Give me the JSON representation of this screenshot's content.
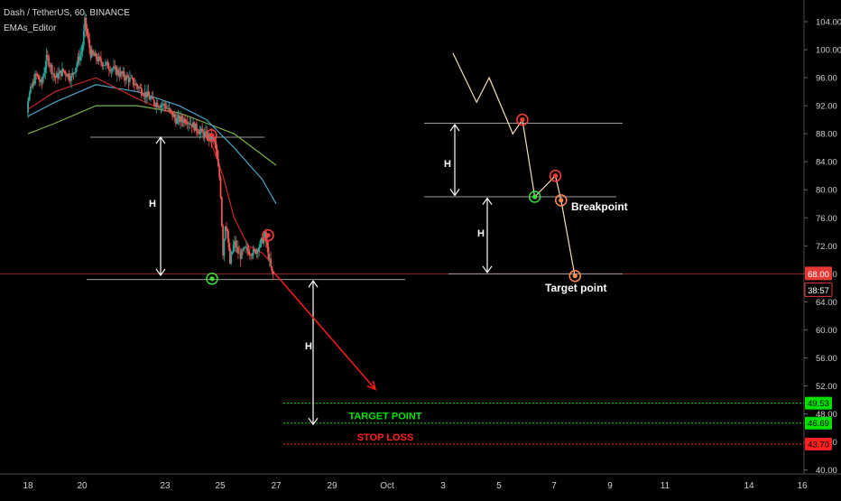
{
  "header": {
    "title": "Dash / TetherUS, 60, BINANCE",
    "indicator": "EMAs_Editor"
  },
  "colors": {
    "background": "#000000",
    "up": "#26a69a",
    "down": "#ef5350",
    "ema_fast": "#c62828",
    "ema_mid": "#4aa3c7",
    "ema_slow": "#7cb342",
    "pattern_line": "#f5deb3",
    "target_line": "#00e000",
    "stop_line": "#ff2020",
    "forecast_arrow": "#ff1a1a",
    "arrows": "#ffffff"
  },
  "chart_data": {
    "type": "candlestick",
    "symbol": "Dash / TetherUS",
    "interval": "60",
    "exchange": "BINANCE",
    "ylim": [
      39,
      106
    ],
    "y_ticks": [
      "104.00",
      "100.00",
      "96.00",
      "92.00",
      "88.00",
      "84.00",
      "80.00",
      "76.00",
      "72.00",
      "68.00",
      "64.00",
      "60.00",
      "56.00",
      "52.00",
      "48.00",
      "44.00",
      "40.00"
    ],
    "x_ticks": [
      "18",
      "20",
      "23",
      "25",
      "27",
      "29",
      "Oct",
      "3",
      "5",
      "7",
      "9",
      "11",
      "14",
      "16"
    ],
    "price_path": [
      [
        17.6,
        92.5
      ],
      [
        17.8,
        91.0
      ],
      [
        18.0,
        93.0
      ],
      [
        18.3,
        96.5
      ],
      [
        18.5,
        95.0
      ],
      [
        18.7,
        99.0
      ],
      [
        19.0,
        96.0
      ],
      [
        19.3,
        97.0
      ],
      [
        19.6,
        96.0
      ],
      [
        19.8,
        98.0
      ],
      [
        20.0,
        100.0
      ],
      [
        20.1,
        104.0
      ],
      [
        20.3,
        99.5
      ],
      [
        20.6,
        98.5
      ],
      [
        21.0,
        97.5
      ],
      [
        21.4,
        96.5
      ],
      [
        21.8,
        95.5
      ],
      [
        22.2,
        94.0
      ],
      [
        22.6,
        92.5
      ],
      [
        23.0,
        92.0
      ],
      [
        23.4,
        90.0
      ],
      [
        23.8,
        90.0
      ],
      [
        24.2,
        88.5
      ],
      [
        24.6,
        87.5
      ],
      [
        24.8,
        87.0
      ],
      [
        25.0,
        81.0
      ],
      [
        25.1,
        71.0
      ],
      [
        25.2,
        76.0
      ],
      [
        25.35,
        69.5
      ],
      [
        25.5,
        72.5
      ],
      [
        25.7,
        70.5
      ],
      [
        25.9,
        71.5
      ],
      [
        26.2,
        71.0
      ],
      [
        26.4,
        72.0
      ],
      [
        26.6,
        73.5
      ],
      [
        26.75,
        70.0
      ],
      [
        26.85,
        68.0
      ],
      [
        27.0,
        68.0
      ]
    ],
    "ema_fast": [
      [
        17.6,
        91.5
      ],
      [
        19.0,
        94.0
      ],
      [
        20.5,
        96.0
      ],
      [
        22.0,
        93.0
      ],
      [
        23.5,
        90.5
      ],
      [
        24.6,
        87.5
      ],
      [
        25.1,
        82.0
      ],
      [
        25.5,
        76.0
      ],
      [
        26.0,
        72.0
      ],
      [
        26.5,
        71.0
      ],
      [
        26.85,
        69.5
      ]
    ],
    "ema_mid": [
      [
        17.6,
        90.5
      ],
      [
        19.0,
        92.5
      ],
      [
        20.5,
        95.0
      ],
      [
        22.0,
        94.0
      ],
      [
        23.5,
        92.0
      ],
      [
        24.5,
        90.0
      ],
      [
        25.5,
        86.0
      ],
      [
        26.5,
        81.5
      ],
      [
        27.0,
        78.0
      ]
    ],
    "ema_slow": [
      [
        17.6,
        88.0
      ],
      [
        19.0,
        89.5
      ],
      [
        20.5,
        92.0
      ],
      [
        22.0,
        92.0
      ],
      [
        23.5,
        91.0
      ],
      [
        24.5,
        89.5
      ],
      [
        25.5,
        88.0
      ],
      [
        26.5,
        85.0
      ],
      [
        27.0,
        83.5
      ]
    ],
    "current_price": "68.00",
    "countdown": "38:57",
    "levels": [
      {
        "label": "TARGET POINT",
        "value": "46.69",
        "color": "#00e000"
      },
      {
        "label": "STOP LOSS",
        "value": "43.70",
        "color": "#ff2020"
      },
      {
        "label": "",
        "value": "49.53",
        "color": "#00e000"
      }
    ],
    "annotations": {
      "measure_label": "H",
      "breakpoint_label": "Breakpoint",
      "target_label": "Target point"
    },
    "pattern_diagram": [
      [
        3.35,
        99.5
      ],
      [
        4.2,
        92.5
      ],
      [
        4.65,
        96.0
      ],
      [
        5.5,
        88.0
      ],
      [
        5.85,
        90.0
      ],
      [
        6.3,
        79.0
      ],
      [
        7.05,
        82.0
      ],
      [
        7.25,
        78.5
      ],
      [
        7.75,
        67.5
      ]
    ]
  }
}
